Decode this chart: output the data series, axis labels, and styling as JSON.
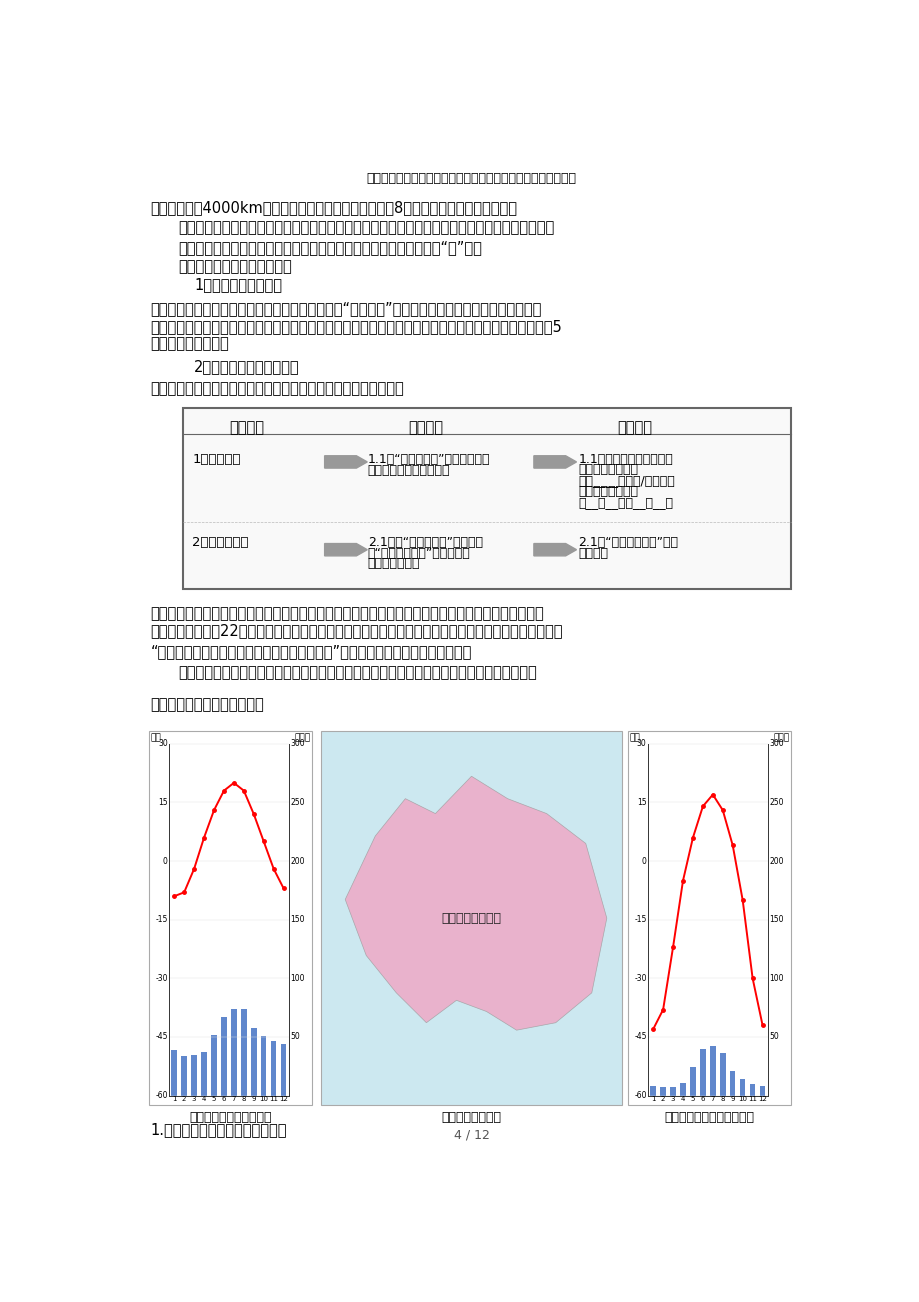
{
  "page_title": "七年级地理下册第七章第四节俄罗斯教学设计（新版）新人教版",
  "page_number": "4 / 12",
  "background_color": "#ffffff",
  "line1": "窄一些，也有4000km宽，相当于坐火车从济南到北京赘8趟，这个国家的地域真大啊！",
  "line2": "（承转）：辽阔的疆域为俄罗斯提供了多样的自然环境，其中地形开阔就是国土广大的直接体现。",
  "line3": "（设计意图：用比较直观的录像和对比的方法让学生体会到俄罗斯的“大”。）",
  "line4": "教学环节三：导学自主学地形",
  "line5": "1、自主了解地形特点",
  "line6": "要了解俄罗斯的地形特点，我们需要看什么地图？“俄地形图”。下面请同学们观察俄罗斯地形图，从",
  "line7": "地势高低、地形区分布两方面完成导学过程的问题，了解地形特点。和们比比哪些同学读图能力强，能在5",
  "line8": "分钟之内完成任务。",
  "line9": "2、学生指图讲解地形特点",
  "line10": "和们再请一位小老师到讲台上给大家指图讲解俄罥斯的地形特点。",
  "th1": "知识结构",
  "th2": "导学过程",
  "th3": "关键结论",
  "r1c1": "1、地势高低",
  "r1c2a": "1.1读“俄罗斯地形”图，看图例，",
  "r1c2b": "判断俄罥斯的地势高低。",
  "r1c3a": "1.1俄罥斯地势高低情况：",
  "r1c3b": "乌拉尔山脉以西：",
  "r1c3c": "地势____（较高/低平），",
  "r1c3d": "乌拉尔山脉以东：",
  "r1c3e": "东__西__，南__北__。",
  "r2c1": "2、地形区分布",
  "r2c2a": "2.1根据“俄罥斯地形”图，在学",
  "r2c2b": "案“俄罥斯示意图”中填出四大",
  "r2c2c": "地形区的名称。",
  "r2c3a": "2.1见“俄罥斯示意图”中所",
  "r2c3b": "填内容。",
  "trans1": "（承转）：在俄罥斯西南，黑海之滨有一个城市索契，在今年春节期间成为了世界瞩目的地方，同学们",
  "trans2": "知道为什么吗？第22届冬奥会在这里举行。俄罥斯总统在申办冬奥会时曾胸有成竹地对国际奥委会成员说",
  "trans3": "“举办冬奥会，我们俄罥斯有得天独厚的条件。”谁知道这得天独厚的条件是什么？",
  "design2": "（设计意图：为学生搞建看图学习的阶梯，充分调动学生自主用图、学图的积极性和能力。）",
  "sec4": "教学环节四：问题探究知气候",
  "cap_left": "莫斯科各月气温和降水量",
  "cap_mid": "俄罥斯气候分布图",
  "cap_right": "雅库茱克各月气温和降水量",
  "final": "1.读直方图总结气候寒冷的特点。",
  "moscow_temps": [
    -9,
    -8,
    -2,
    6,
    13,
    18,
    20,
    18,
    12,
    5,
    -2,
    -7
  ],
  "moscow_precip": [
    39,
    34,
    35,
    37,
    52,
    67,
    74,
    74,
    58,
    51,
    47,
    44
  ],
  "yakutsk_temps": [
    -43,
    -38,
    -22,
    -5,
    6,
    14,
    17,
    13,
    4,
    -10,
    -30,
    -42
  ],
  "yakutsk_precip": [
    8,
    7,
    7,
    11,
    24,
    40,
    42,
    36,
    21,
    14,
    10,
    8
  ],
  "temp_axis": [
    30,
    15,
    0,
    -15,
    -30,
    -45,
    -60
  ],
  "precip_axis": [
    300,
    250,
    200,
    150,
    100,
    50
  ],
  "temp_min": -60,
  "temp_max": 30,
  "precip_max": 300
}
